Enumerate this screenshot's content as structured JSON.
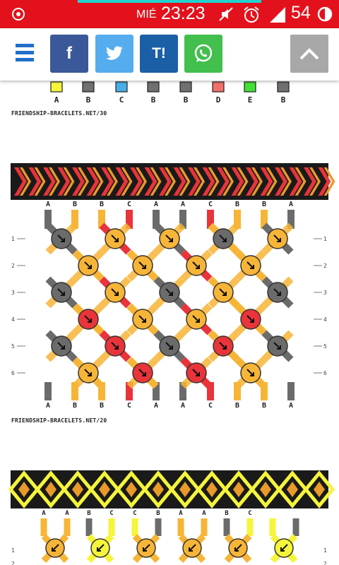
{
  "status_bar": {
    "day": "MIÉ",
    "time": "23:23",
    "battery": "54",
    "bg_color": "#e3111b"
  },
  "toolbar": {
    "menu_icon": "hamburger-icon",
    "share_buttons": [
      {
        "name": "facebook",
        "label": "f",
        "color": "#3b5998"
      },
      {
        "name": "twitter",
        "label": "🐦",
        "color": "#55acee"
      },
      {
        "name": "tuenti",
        "label": "T!",
        "color": "#1b5fa6"
      },
      {
        "name": "whatsapp",
        "label": "✆",
        "color": "#43bf4e"
      }
    ],
    "scroll_top_icon": "chevron-up-icon"
  },
  "patterns": [
    {
      "caption": "FRIENDSHIP-BRACELETS.NET/30",
      "strand_letters": [
        "A",
        "B",
        "C",
        "B",
        "B",
        "D",
        "E",
        "B"
      ],
      "strand_colors": [
        "#f5f53c",
        "#707070",
        "#49aee8",
        "#707070",
        "#707070",
        "#f0706a",
        "#41e037",
        "#707070"
      ]
    },
    {
      "caption": "FRIENDSHIP-BRACELETS.NET/20",
      "top_letters": [
        "A",
        "B",
        "B",
        "C",
        "A",
        "A",
        "C",
        "B",
        "B",
        "A"
      ],
      "bottom_letters": [
        "A",
        "B",
        "B",
        "C",
        "A",
        "A",
        "C",
        "B",
        "B",
        "A"
      ],
      "row_numbers": [
        "1",
        "2",
        "3",
        "4",
        "5",
        "6"
      ],
      "colors": {
        "A": "#6b6b6b",
        "B": "#f7b537",
        "C": "#e8343a"
      }
    },
    {
      "top_letters": [
        "A",
        "A",
        "B",
        "C",
        "C",
        "B",
        "A",
        "A",
        "B",
        "C"
      ],
      "row_numbers": [
        "1",
        "2"
      ],
      "colors": {
        "A": "#f7b537",
        "B": "#6b6b6b",
        "C": "#f5f53c"
      }
    }
  ]
}
